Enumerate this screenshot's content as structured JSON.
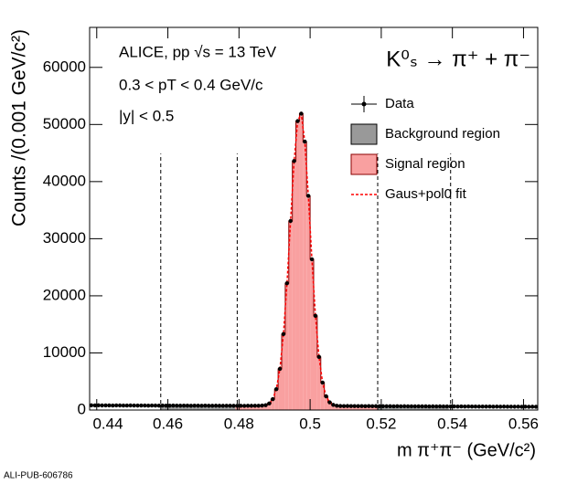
{
  "chart_data": {
    "type": "histogram",
    "header_lines": [
      "ALICE, pp √s = 13 TeV",
      "0.3 < pT < 0.4 GeV/c",
      "|y| < 0.5"
    ],
    "reaction": "K⁰ₛ → π⁺ + π⁻",
    "xlabel": "m π⁺π⁻ (GeV/c²)",
    "ylabel": "Counts /(0.001 GeV/c²)",
    "footer": "ALI-PUB-606786",
    "legend_labels": [
      "Data",
      "Background region",
      "Signal region",
      "Gaus+pol0 fit"
    ],
    "legend_position": "top right",
    "marker_color": "#000000",
    "background_color": "#999999",
    "signal_color": "#f9a0a0",
    "outline_color": "#8b0000",
    "fit_color": "#ff0000",
    "signal_region": [
      0.4795,
      0.519
    ],
    "background_regions": [
      [
        0.458,
        0.4795
      ],
      [
        0.519,
        0.5395
      ]
    ],
    "xlim": [
      0.438,
      0.564
    ],
    "xticks": [
      0.44,
      0.46,
      0.48,
      0.5,
      0.52,
      0.54,
      0.56
    ],
    "ylim": [
      0,
      67000
    ],
    "yticks": [
      0,
      10000,
      20000,
      30000,
      40000,
      50000,
      60000
    ],
    "bins": [
      0.438,
      0.439,
      0.44,
      0.441,
      0.442,
      0.443,
      0.444,
      0.445,
      0.446,
      0.447,
      0.448,
      0.449,
      0.45,
      0.451,
      0.452,
      0.453,
      0.454,
      0.455,
      0.456,
      0.457,
      0.458,
      0.459,
      0.46,
      0.461,
      0.462,
      0.463,
      0.464,
      0.465,
      0.466,
      0.467,
      0.468,
      0.469,
      0.47,
      0.471,
      0.472,
      0.473,
      0.474,
      0.475,
      0.476,
      0.477,
      0.478,
      0.479,
      0.48,
      0.481,
      0.482,
      0.483,
      0.484,
      0.485,
      0.486,
      0.487,
      0.488,
      0.489,
      0.49,
      0.491,
      0.492,
      0.493,
      0.494,
      0.495,
      0.496,
      0.497,
      0.498,
      0.499,
      0.5,
      0.501,
      0.502,
      0.503,
      0.504,
      0.505,
      0.506,
      0.507,
      0.508,
      0.509,
      0.51,
      0.511,
      0.512,
      0.513,
      0.514,
      0.515,
      0.516,
      0.517,
      0.518,
      0.519,
      0.52,
      0.521,
      0.522,
      0.523,
      0.524,
      0.525,
      0.526,
      0.527,
      0.528,
      0.529,
      0.53,
      0.531,
      0.532,
      0.533,
      0.534,
      0.535,
      0.536,
      0.537,
      0.538,
      0.539,
      0.54,
      0.541,
      0.542,
      0.543,
      0.544,
      0.545,
      0.546,
      0.547,
      0.548,
      0.549,
      0.55,
      0.551,
      0.552,
      0.553,
      0.554,
      0.555,
      0.556,
      0.557,
      0.558,
      0.559,
      0.56,
      0.561,
      0.562,
      0.563,
      0.564
    ],
    "counts": [
      820,
      810,
      830,
      800,
      815,
      805,
      790,
      810,
      800,
      795,
      785,
      800,
      790,
      780,
      795,
      785,
      775,
      790,
      780,
      770,
      785,
      775,
      765,
      780,
      770,
      760,
      775,
      765,
      755,
      770,
      760,
      750,
      765,
      755,
      745,
      760,
      750,
      740,
      755,
      745,
      740,
      750,
      740,
      735,
      745,
      740,
      745,
      750,
      780,
      850,
      1150,
      1900,
      3650,
      7200,
      13300,
      22200,
      33100,
      43600,
      50600,
      51900,
      47000,
      37500,
      26400,
      16500,
      9300,
      4800,
      2400,
      1350,
      900,
      750,
      700,
      690,
      700,
      685,
      695,
      680,
      690,
      675,
      685,
      670,
      680,
      665,
      675,
      660,
      670,
      655,
      665,
      650,
      660,
      645,
      655,
      640,
      650,
      640,
      645,
      635,
      640,
      630,
      640,
      625,
      635,
      620,
      630,
      615,
      625,
      610,
      620,
      605,
      615,
      600,
      610,
      600,
      605,
      595,
      600,
      590,
      600,
      585,
      595,
      580,
      590,
      575,
      585,
      570,
      580,
      570
    ]
  }
}
